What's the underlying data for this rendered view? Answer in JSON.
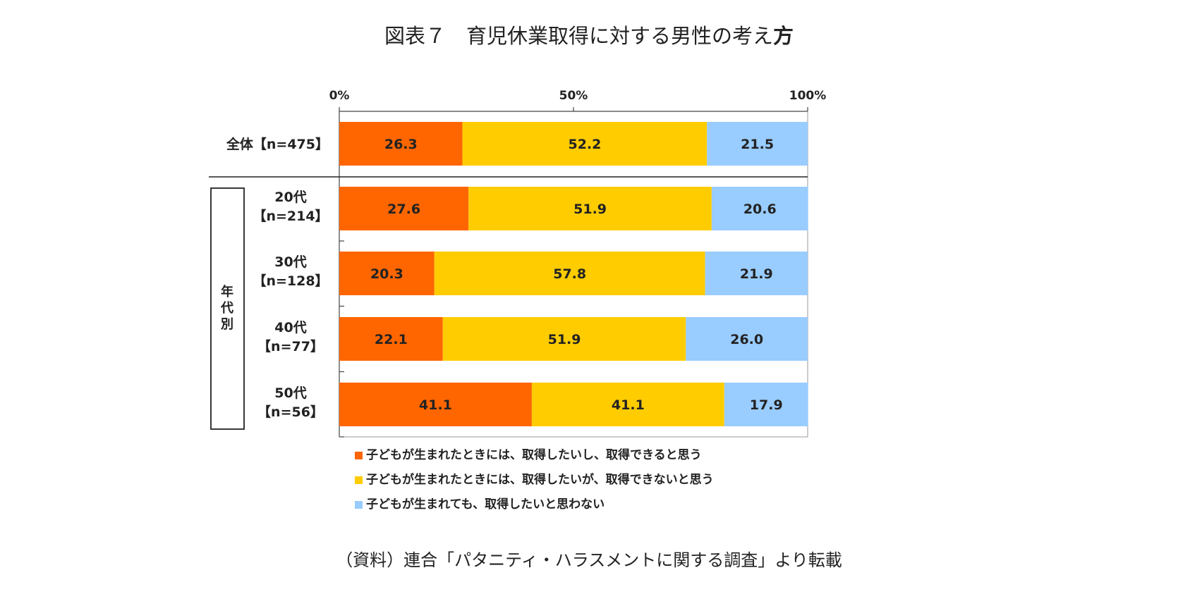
{
  "title": {
    "main": "図表７　育児休業取得に対する男性の考え",
    "bold": "方"
  },
  "source": "（資料）連合「パタニティ・ハラスメントに関する調査」より転載",
  "chart_data": {
    "type": "bar",
    "orientation": "horizontal",
    "stacked": true,
    "xlim": [
      0,
      100
    ],
    "x_ticks": [
      "0%",
      "50%",
      "100%"
    ],
    "group_label": "年代別",
    "categories": [
      {
        "line1": "全体【n=475】",
        "line2": ""
      },
      {
        "line1": "20代",
        "line2": "【n=214】"
      },
      {
        "line1": "30代",
        "line2": "【n=128】"
      },
      {
        "line1": "40代",
        "line2": "【n=77】"
      },
      {
        "line1": "50代",
        "line2": "【n=56】"
      }
    ],
    "series": [
      {
        "name": "子どもが生まれたときには、取得したいし、取得できると思う",
        "color": "#FF6600",
        "values": [
          26.3,
          27.6,
          20.3,
          22.1,
          41.1
        ],
        "labels": [
          "26.3",
          "27.6",
          "20.3",
          "22.1",
          "41.1"
        ]
      },
      {
        "name": "子どもが生まれたときには、取得したいが、取得できないと思う",
        "color": "#FFCC00",
        "values": [
          52.2,
          51.9,
          57.8,
          51.9,
          41.1
        ],
        "labels": [
          "52.2",
          "51.9",
          "57.8",
          "51.9",
          "41.1"
        ]
      },
      {
        "name": "子どもが生まれても、取得したいと思わない",
        "color": "#99CCFF",
        "values": [
          21.5,
          20.6,
          21.9,
          26.0,
          17.9
        ],
        "labels": [
          "21.5",
          "20.6",
          "21.9",
          "26.0",
          "17.9"
        ]
      }
    ],
    "legend_position": "bottom",
    "grid": false
  }
}
